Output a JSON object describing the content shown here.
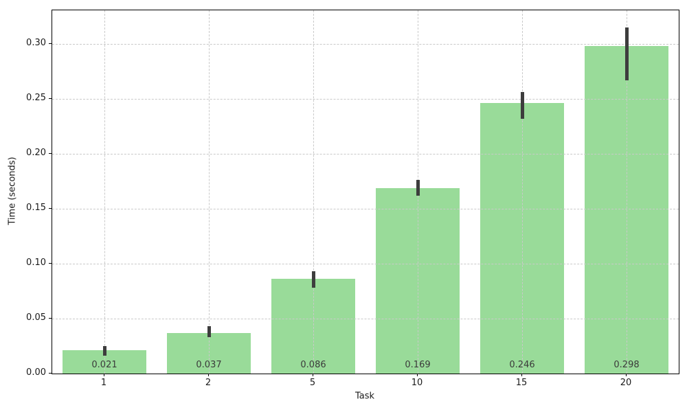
{
  "figure": {
    "title": "",
    "background": "#ffffff"
  },
  "chart_data": {
    "type": "bar",
    "title": "",
    "xlabel": "Task",
    "ylabel": "Time (seconds)",
    "categories": [
      "1",
      "2",
      "5",
      "10",
      "15",
      "20"
    ],
    "values": [
      0.021,
      0.037,
      0.086,
      0.169,
      0.246,
      0.298
    ],
    "bar_labels": [
      "0.021",
      "0.037",
      "0.086",
      "0.169",
      "0.246",
      "0.298"
    ],
    "error_low": [
      0.016,
      0.033,
      0.078,
      0.162,
      0.232,
      0.267
    ],
    "error_high": [
      0.025,
      0.043,
      0.093,
      0.176,
      0.256,
      0.315
    ],
    "yticks": [
      0.0,
      0.05,
      0.1,
      0.15,
      0.2,
      0.25,
      0.3
    ],
    "ytick_labels": [
      "0.00",
      "0.05",
      "0.10",
      "0.15",
      "0.20",
      "0.25",
      "0.30"
    ],
    "ylim": [
      0,
      0.3306
    ],
    "grid": "dashed gridlines on both axes, drawn above bars",
    "legend": "none",
    "colors": {
      "bar": "#99db99",
      "error_bar": "#3d3d3d",
      "grid": "#c9c9c9",
      "frame": "#000000",
      "tick_text": "#1a1a1a",
      "bar_label_text": "#3a3a3a"
    }
  }
}
